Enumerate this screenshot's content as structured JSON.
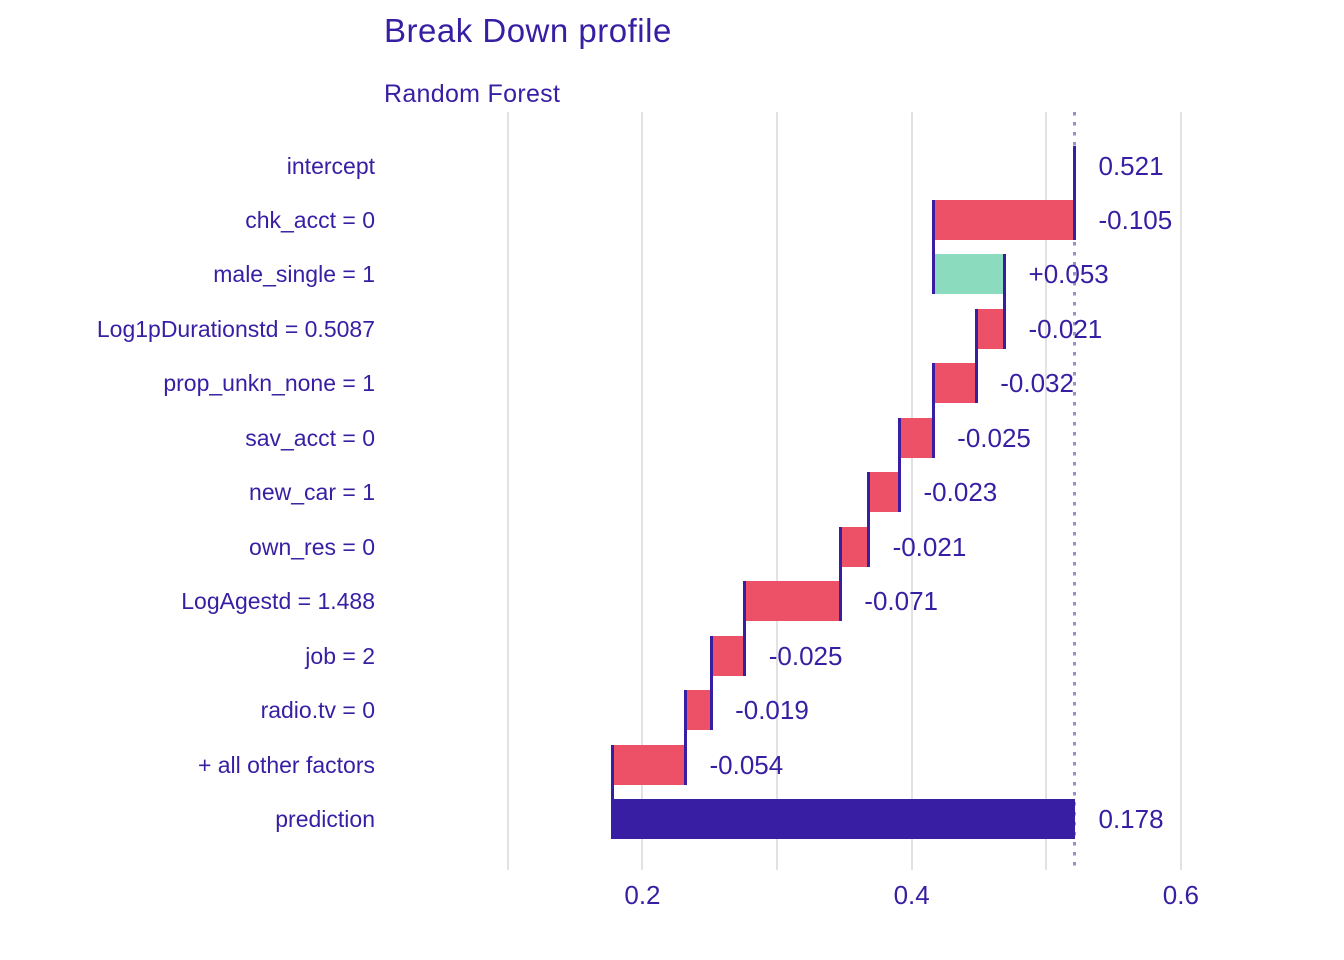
{
  "chart_data": {
    "type": "bar",
    "variant": "breakdown-waterfall",
    "title": "Break Down profile",
    "subtitle": "Random Forest",
    "orientation": "horizontal",
    "x_axis": {
      "range": [
        0.008,
        0.638
      ],
      "gridlines": [
        0.1,
        0.2,
        0.3,
        0.4,
        0.5,
        0.6
      ],
      "ticks": [
        0.2,
        0.4,
        0.6
      ],
      "tick_labels": [
        "0.2",
        "0.4",
        "0.6"
      ]
    },
    "baseline_intercept": 0.521,
    "final_prediction": 0.178,
    "rows": [
      {
        "label": "intercept",
        "value_label": "0.521",
        "contribution": 0.521,
        "start": 0.521,
        "end": 0.521,
        "kind": "intercept"
      },
      {
        "label": "chk_acct = 0",
        "value_label": "-0.105",
        "contribution": -0.105,
        "start": 0.521,
        "end": 0.416,
        "kind": "negative"
      },
      {
        "label": "male_single = 1",
        "value_label": "+0.053",
        "contribution": 0.053,
        "start": 0.416,
        "end": 0.469,
        "kind": "positive"
      },
      {
        "label": "Log1pDurationstd = 0.5087",
        "value_label": "-0.021",
        "contribution": -0.021,
        "start": 0.469,
        "end": 0.448,
        "kind": "negative"
      },
      {
        "label": "prop_unkn_none = 1",
        "value_label": "-0.032",
        "contribution": -0.032,
        "start": 0.448,
        "end": 0.416,
        "kind": "negative"
      },
      {
        "label": "sav_acct = 0",
        "value_label": "-0.025",
        "contribution": -0.025,
        "start": 0.416,
        "end": 0.391,
        "kind": "negative"
      },
      {
        "label": "new_car = 1",
        "value_label": "-0.023",
        "contribution": -0.023,
        "start": 0.391,
        "end": 0.368,
        "kind": "negative"
      },
      {
        "label": "own_res = 0",
        "value_label": "-0.021",
        "contribution": -0.021,
        "start": 0.368,
        "end": 0.347,
        "kind": "negative"
      },
      {
        "label": "LogAgestd = 1.488",
        "value_label": "-0.071",
        "contribution": -0.071,
        "start": 0.347,
        "end": 0.276,
        "kind": "negative"
      },
      {
        "label": "job = 2",
        "value_label": "-0.025",
        "contribution": -0.025,
        "start": 0.276,
        "end": 0.251,
        "kind": "negative"
      },
      {
        "label": "radio.tv = 0",
        "value_label": "-0.019",
        "contribution": -0.019,
        "start": 0.251,
        "end": 0.232,
        "kind": "negative"
      },
      {
        "label": "+ all other factors",
        "value_label": "-0.054",
        "contribution": -0.054,
        "start": 0.232,
        "end": 0.178,
        "kind": "negative"
      },
      {
        "label": "prediction",
        "value_label": "0.178",
        "contribution": 0.178,
        "start": 0.178,
        "end": 0.521,
        "kind": "prediction"
      }
    ],
    "colors": {
      "positive": "#8bdcbe",
      "negative": "#ec5168",
      "prediction": "#371ea3",
      "intercept_line": "#371ea3",
      "connector": "#371ea3",
      "text": "#371ea3",
      "gridline": "#e2e2e2",
      "dotted_guide": "rgba(55,30,163,0.5)"
    }
  }
}
